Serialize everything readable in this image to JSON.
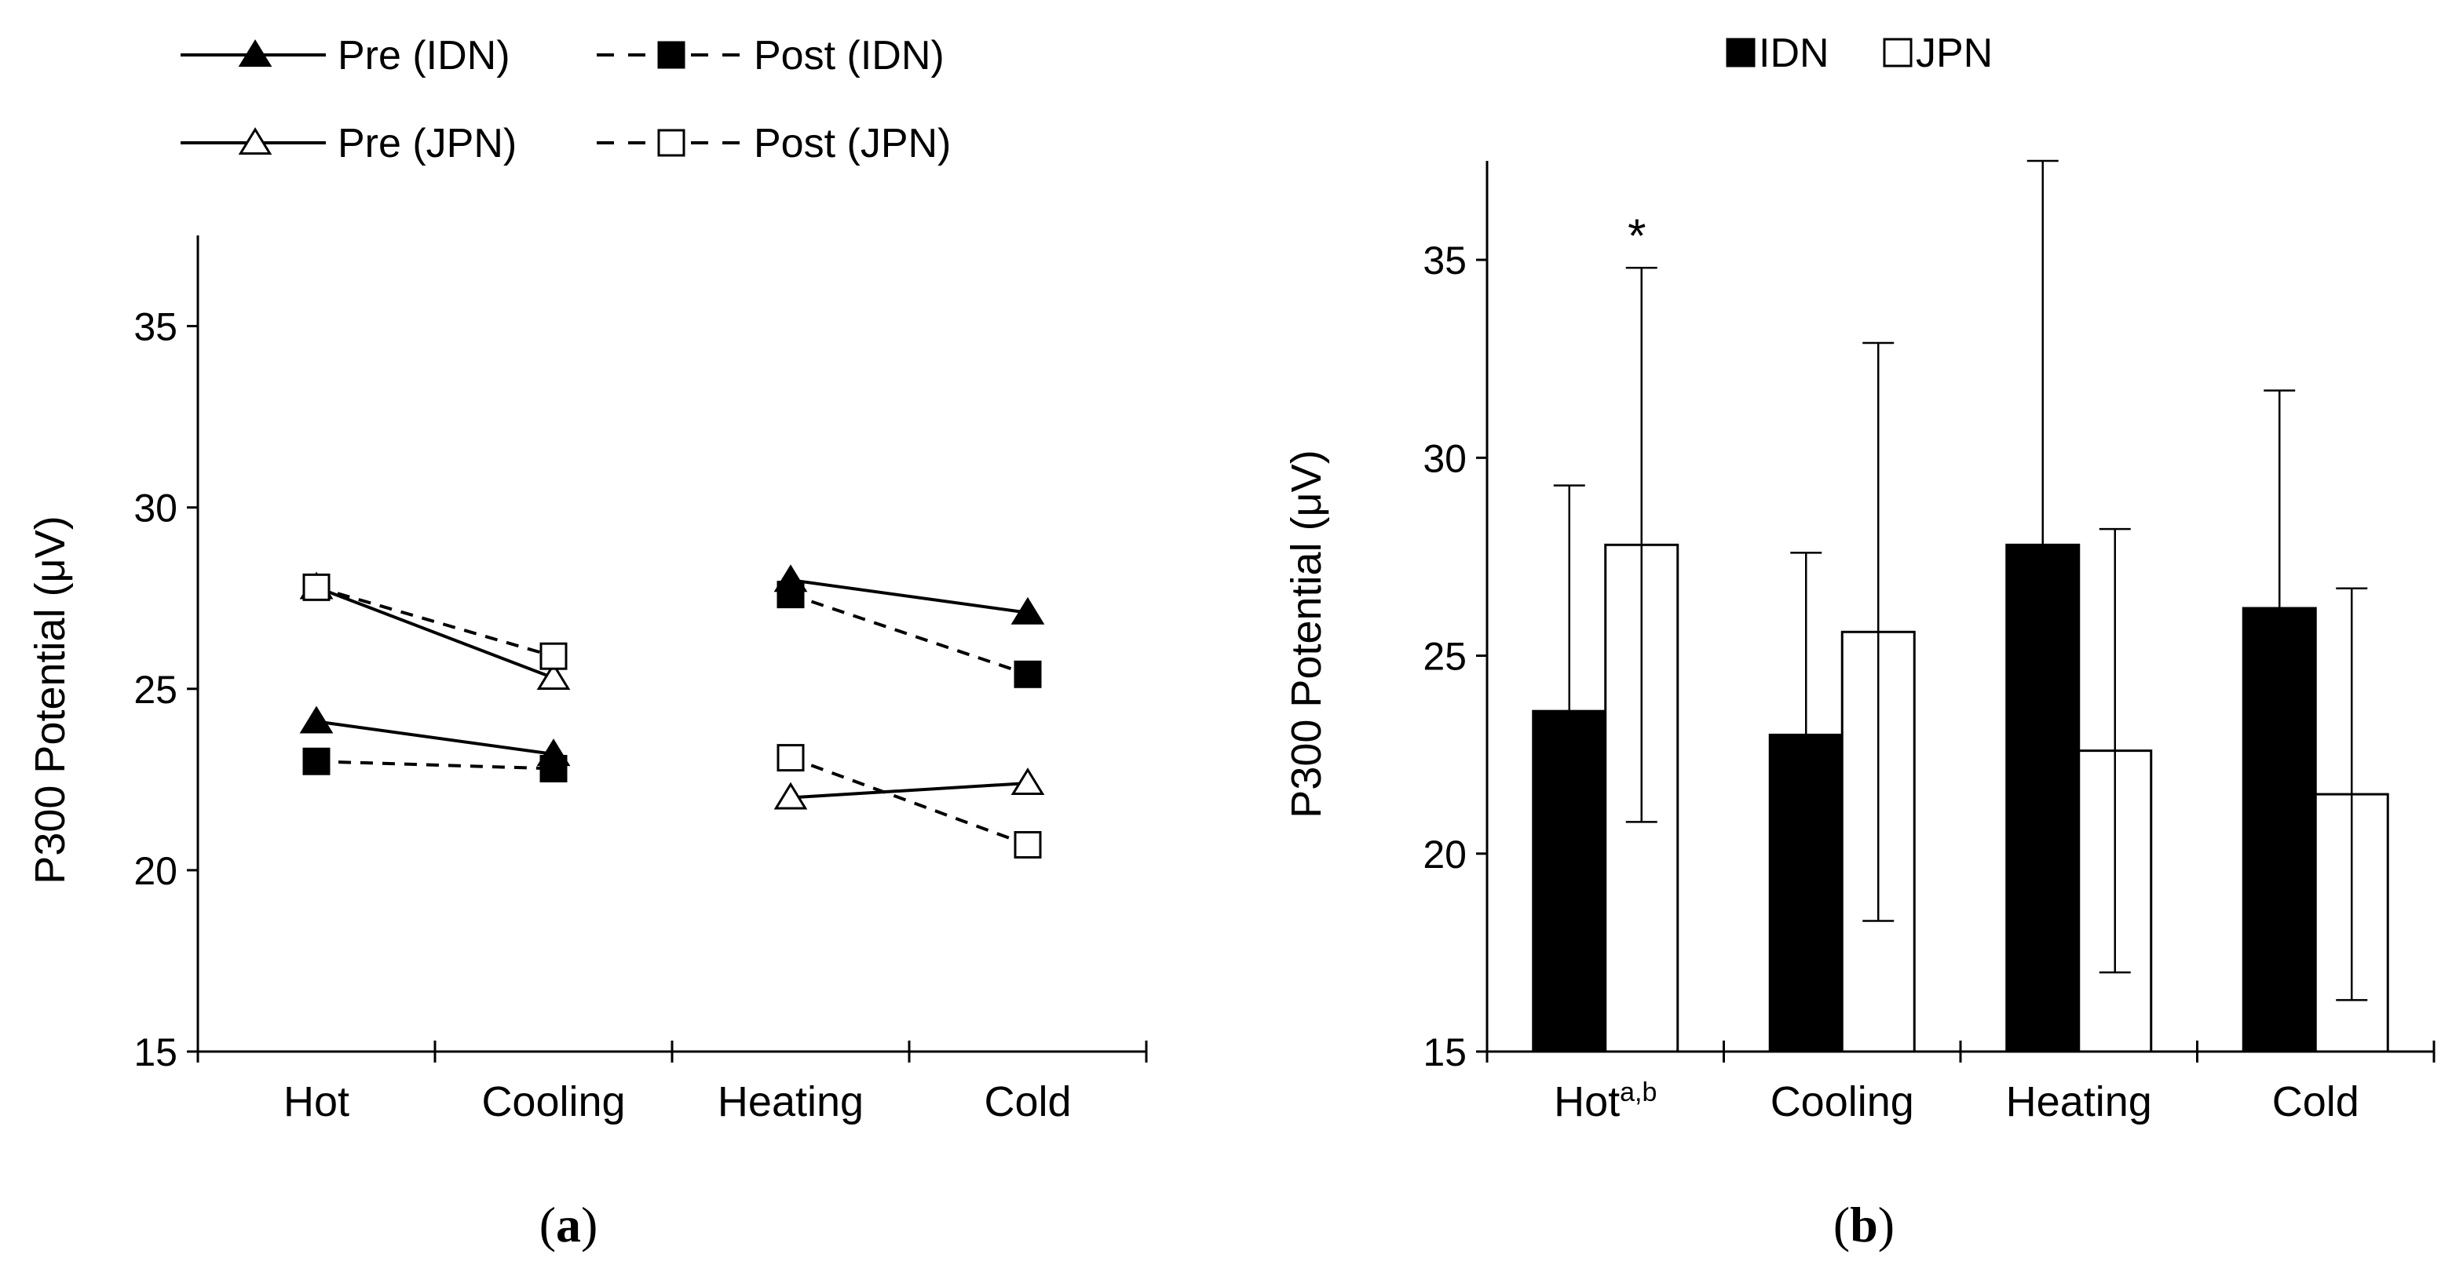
{
  "chart_data": [
    {
      "panel": "a",
      "caption": "a",
      "type": "line",
      "ylabel": "P300 Potential (μV)",
      "ylim": [
        15,
        37.5
      ],
      "yticks": [
        15,
        20,
        25,
        30,
        35
      ],
      "categories": [
        "Hot",
        "Cooling",
        "Heating",
        "Cold"
      ],
      "legend": [
        "Pre (IDN)",
        "Post (IDN)",
        "Pre (JPN)",
        "Post (JPN)"
      ],
      "legend_position": "top-left",
      "segments": [
        {
          "series": "Pre (IDN)",
          "x": [
            "Hot",
            "Cooling"
          ],
          "values": [
            24.1,
            23.2
          ]
        },
        {
          "series": "Post (IDN)",
          "x": [
            "Hot",
            "Cooling"
          ],
          "values": [
            23.0,
            22.8
          ]
        },
        {
          "series": "Pre (JPN)",
          "x": [
            "Hot",
            "Cooling"
          ],
          "values": [
            27.8,
            25.3
          ]
        },
        {
          "series": "Post (JPN)",
          "x": [
            "Hot",
            "Cooling"
          ],
          "values": [
            27.8,
            25.9
          ]
        },
        {
          "series": "Pre (IDN)",
          "x": [
            "Heating",
            "Cold"
          ],
          "values": [
            28.0,
            27.1
          ]
        },
        {
          "series": "Post (IDN)",
          "x": [
            "Heating",
            "Cold"
          ],
          "values": [
            27.6,
            25.4
          ]
        },
        {
          "series": "Pre (JPN)",
          "x": [
            "Heating",
            "Cold"
          ],
          "values": [
            22.0,
            22.4
          ]
        },
        {
          "series": "Post (JPN)",
          "x": [
            "Heating",
            "Cold"
          ],
          "values": [
            23.1,
            20.7
          ]
        }
      ]
    },
    {
      "panel": "b",
      "caption": "b",
      "type": "bar",
      "ylabel": "P300 Potential (μV)",
      "ylim": [
        15,
        37.5
      ],
      "yticks": [
        15,
        20,
        25,
        30,
        35
      ],
      "categories": [
        "Hot",
        "Cooling",
        "Heating",
        "Cold"
      ],
      "category_superscripts": [
        "a,b",
        "",
        "",
        ""
      ],
      "series": [
        {
          "name": "IDN",
          "values": [
            23.6,
            23.0,
            27.8,
            26.2
          ],
          "error": [
            5.7,
            4.6,
            9.7,
            5.5
          ]
        },
        {
          "name": "JPN",
          "values": [
            27.8,
            25.6,
            22.6,
            21.5
          ],
          "error": [
            7.0,
            7.3,
            5.6,
            5.2
          ]
        }
      ],
      "legend": [
        "IDN",
        "JPN"
      ],
      "legend_position": "top-center",
      "annotations": [
        {
          "text": "*",
          "category": "Hot",
          "series": "JPN"
        }
      ]
    }
  ]
}
